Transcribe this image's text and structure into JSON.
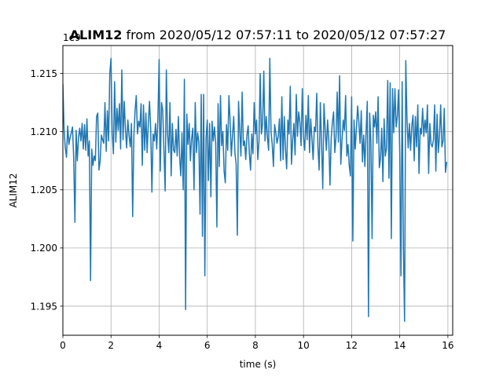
{
  "chart_data": {
    "type": "line",
    "title": {
      "bold": "ALIM12",
      "rest": " from 2020/05/12 07:57:11 to 2020/05/12 07:57:27"
    },
    "xlabel": "time (s)",
    "ylabel": "ALIM12",
    "offset_text": "1e9",
    "xlim": [
      0,
      16.2
    ],
    "ylim": [
      1.1925,
      1.2174
    ],
    "x_ticks": [
      0,
      2,
      4,
      6,
      8,
      10,
      12,
      14,
      16
    ],
    "x_tick_labels": [
      "0",
      "2",
      "4",
      "6",
      "8",
      "10",
      "12",
      "14",
      "16"
    ],
    "y_ticks": [
      1.195,
      1.2,
      1.205,
      1.21,
      1.215
    ],
    "y_tick_labels": [
      "1.195",
      "1.200",
      "1.205",
      "1.210",
      "1.215"
    ],
    "grid": true,
    "line_color": "#1f77b4",
    "x_start": 0,
    "x_step": 0.05,
    "y": [
      1.2141,
      1.2102,
      1.2086,
      1.2078,
      1.2105,
      1.2089,
      1.2095,
      1.2099,
      1.2104,
      1.2077,
      1.2022,
      1.2101,
      1.2075,
      1.2095,
      1.2103,
      1.2092,
      1.2107,
      1.2085,
      1.2106,
      1.2084,
      1.2111,
      1.2079,
      1.2092,
      1.1972,
      1.2085,
      1.2071,
      1.2079,
      1.2075,
      1.2113,
      1.2116,
      1.2067,
      1.2075,
      1.2097,
      1.2093,
      1.209,
      1.2125,
      1.2083,
      1.2118,
      1.2092,
      1.215,
      1.2163,
      1.2099,
      1.2081,
      1.2143,
      1.2091,
      1.212,
      1.2101,
      1.2124,
      1.2085,
      1.2153,
      1.2093,
      1.2126,
      1.2102,
      1.2086,
      1.211,
      1.2097,
      1.2087,
      1.2107,
      1.2027,
      1.2096,
      1.2118,
      1.2131,
      1.2098,
      1.2109,
      1.2104,
      1.2124,
      1.2071,
      1.2123,
      1.2084,
      1.2116,
      1.2082,
      1.2107,
      1.2126,
      1.2102,
      1.2048,
      1.2098,
      1.2092,
      1.2107,
      1.2085,
      1.2112,
      1.2162,
      1.2066,
      1.2125,
      1.2118,
      1.2084,
      1.2049,
      1.2153,
      1.2098,
      1.2082,
      1.2125,
      1.2062,
      1.2107,
      1.2084,
      1.2082,
      1.2102,
      1.2079,
      1.2113,
      1.2079,
      1.2062,
      1.2099,
      1.205,
      1.2145,
      1.1947,
      1.2115,
      1.2089,
      1.2107,
      1.2075,
      1.2094,
      1.2103,
      1.205,
      1.2125,
      1.2082,
      1.2099,
      1.2091,
      1.2029,
      1.2132,
      1.201,
      1.2132,
      1.1976,
      1.2094,
      1.211,
      1.2058,
      1.2107,
      1.2044,
      1.2109,
      1.2092,
      1.2104,
      1.209,
      1.2018,
      1.2124,
      1.207,
      1.2131,
      1.2088,
      1.21,
      1.2066,
      1.2056,
      1.2106,
      1.2084,
      1.2131,
      1.2109,
      1.2079,
      1.2097,
      1.2113,
      1.2082,
      1.2072,
      1.2011,
      1.2126,
      1.2101,
      1.2079,
      1.2134,
      1.2088,
      1.2092,
      1.2076,
      1.2097,
      1.2105,
      1.2081,
      1.2067,
      1.2098,
      1.2081,
      1.2125,
      1.2098,
      1.211,
      1.2076,
      1.2092,
      1.215,
      1.2098,
      1.2107,
      1.2152,
      1.2092,
      1.2113,
      1.2095,
      1.2084,
      1.2163,
      1.21,
      1.2089,
      1.207,
      1.2106,
      1.2099,
      1.209,
      1.2096,
      1.2111,
      1.2075,
      1.213,
      1.2076,
      1.2113,
      1.2085,
      1.2068,
      1.211,
      1.2098,
      1.2139,
      1.2072,
      1.2093,
      1.2107,
      1.208,
      1.2132,
      1.2096,
      1.2117,
      1.2108,
      1.2088,
      1.2137,
      1.2095,
      1.2084,
      1.2114,
      1.2093,
      1.2131,
      1.2082,
      1.2111,
      1.2094,
      1.2076,
      1.2104,
      1.21,
      1.2133,
      1.2087,
      1.2067,
      1.2125,
      1.209,
      1.2051,
      1.2124,
      1.2102,
      1.2084,
      1.211,
      1.2093,
      1.2054,
      1.2094,
      1.2108,
      1.2117,
      1.2082,
      1.2095,
      1.2134,
      1.2091,
      1.2148,
      1.2072,
      1.2093,
      1.211,
      1.2101,
      1.2131,
      1.2079,
      1.2089,
      1.2071,
      1.2062,
      1.213,
      1.2006,
      1.211,
      1.2085,
      1.2103,
      1.2122,
      1.2108,
      1.209,
      1.2118,
      1.2074,
      1.2097,
      1.207,
      1.21,
      1.2126,
      1.1941,
      1.2116,
      1.2091,
      1.2008,
      1.2114,
      1.2104,
      1.2117,
      1.209,
      1.213,
      1.2069,
      1.2077,
      1.2103,
      1.2057,
      1.2111,
      1.2079,
      1.2086,
      1.2144,
      1.206,
      1.2142,
      1.2008,
      1.2137,
      1.2099,
      1.2137,
      1.2104,
      1.2113,
      1.2136,
      1.2081,
      1.1976,
      1.2143,
      1.2001,
      1.1937,
      1.2161,
      1.2111,
      1.2086,
      1.2107,
      1.2084,
      1.2105,
      1.2114,
      1.2075,
      1.2113,
      1.2087,
      1.2123,
      1.2064,
      1.2103,
      1.2098,
      1.212,
      1.2096,
      1.211,
      1.2099,
      1.2123,
      1.2064,
      1.2107,
      1.2089,
      1.2087,
      1.2093,
      1.2123,
      1.2066,
      1.2115,
      1.2082,
      1.2096,
      1.2123,
      1.2087,
      1.2092,
      1.212,
      1.2065,
      1.2074
    ]
  }
}
